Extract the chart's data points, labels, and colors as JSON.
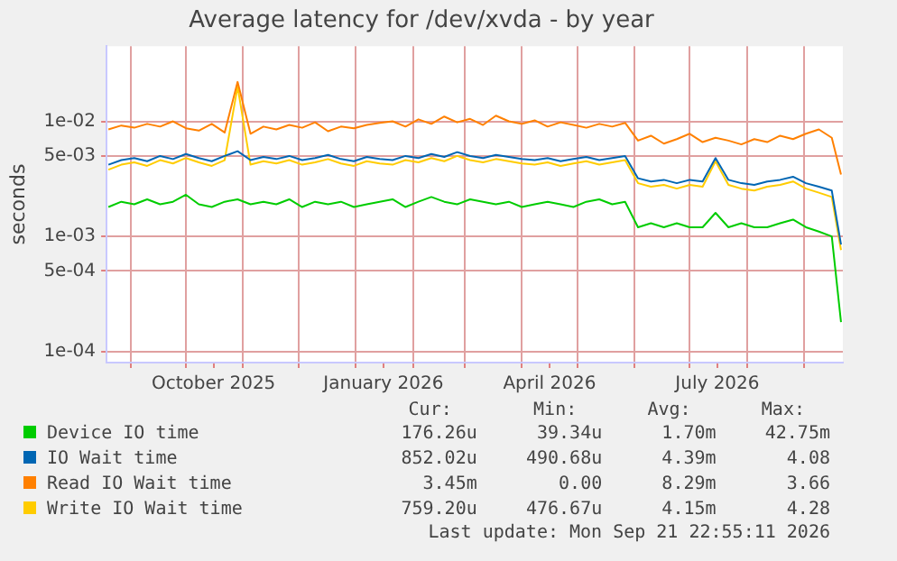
{
  "chart_data": {
    "type": "line",
    "title": "Average latency for /dev/xvda - by year",
    "ylabel": "seconds",
    "x": [
      "2025-08-20",
      "2025-08-27",
      "2025-09-03",
      "2025-09-10",
      "2025-09-17",
      "2025-09-24",
      "2025-10-01",
      "2025-10-08",
      "2025-10-15",
      "2025-10-22",
      "2025-10-29",
      "2025-11-05",
      "2025-11-12",
      "2025-11-19",
      "2025-11-26",
      "2025-12-03",
      "2025-12-10",
      "2025-12-17",
      "2025-12-24",
      "2025-12-31",
      "2026-01-07",
      "2026-01-14",
      "2026-01-21",
      "2026-01-28",
      "2026-02-04",
      "2026-02-11",
      "2026-02-18",
      "2026-02-25",
      "2026-03-04",
      "2026-03-11",
      "2026-03-18",
      "2026-03-25",
      "2026-04-01",
      "2026-04-08",
      "2026-04-15",
      "2026-04-22",
      "2026-04-29",
      "2026-05-06",
      "2026-05-13",
      "2026-05-20",
      "2026-05-27",
      "2026-06-03",
      "2026-06-10",
      "2026-06-17",
      "2026-06-24",
      "2026-07-01",
      "2026-07-08",
      "2026-07-15",
      "2026-07-22",
      "2026-07-29",
      "2026-08-05",
      "2026-08-12",
      "2026-08-19",
      "2026-08-26",
      "2026-09-02",
      "2026-09-09",
      "2026-09-16",
      "2026-09-21"
    ],
    "series": [
      {
        "name": "Device IO time",
        "color": "#00cc00",
        "values": [
          0.0018,
          0.002,
          0.0019,
          0.0021,
          0.0019,
          0.002,
          0.0023,
          0.0019,
          0.0018,
          0.002,
          0.0021,
          0.0019,
          0.002,
          0.0019,
          0.0021,
          0.0018,
          0.002,
          0.0019,
          0.002,
          0.0018,
          0.0019,
          0.002,
          0.0021,
          0.0018,
          0.002,
          0.0022,
          0.002,
          0.0019,
          0.0021,
          0.002,
          0.0019,
          0.002,
          0.0018,
          0.0019,
          0.002,
          0.0019,
          0.0018,
          0.002,
          0.0021,
          0.0019,
          0.002,
          0.0012,
          0.0013,
          0.0012,
          0.0013,
          0.0012,
          0.0012,
          0.0016,
          0.0012,
          0.0013,
          0.0012,
          0.0012,
          0.0013,
          0.0014,
          0.0012,
          0.0011,
          0.001,
          0.00018
        ]
      },
      {
        "name": "IO Wait time",
        "color": "#0066b3",
        "values": [
          0.0042,
          0.0046,
          0.0048,
          0.0045,
          0.005,
          0.0047,
          0.0052,
          0.0048,
          0.0045,
          0.005,
          0.0055,
          0.0046,
          0.0049,
          0.0047,
          0.005,
          0.0046,
          0.0048,
          0.0051,
          0.0047,
          0.0045,
          0.0049,
          0.0047,
          0.0046,
          0.005,
          0.0048,
          0.0052,
          0.0049,
          0.0054,
          0.005,
          0.0048,
          0.0051,
          0.0049,
          0.0047,
          0.0046,
          0.0048,
          0.0045,
          0.0047,
          0.0049,
          0.0046,
          0.0048,
          0.005,
          0.0032,
          0.003,
          0.0031,
          0.0029,
          0.0031,
          0.003,
          0.0048,
          0.0031,
          0.0029,
          0.0028,
          0.003,
          0.0031,
          0.0033,
          0.0029,
          0.0027,
          0.0025,
          0.00085
        ]
      },
      {
        "name": "Read IO Wait time",
        "color": "#ff8000",
        "values": [
          0.0085,
          0.0092,
          0.0088,
          0.0095,
          0.009,
          0.01,
          0.0087,
          0.0083,
          0.0095,
          0.008,
          0.022,
          0.0078,
          0.009,
          0.0085,
          0.0093,
          0.0088,
          0.0098,
          0.0082,
          0.009,
          0.0087,
          0.0093,
          0.0097,
          0.01,
          0.009,
          0.0104,
          0.0095,
          0.011,
          0.0098,
          0.0105,
          0.0093,
          0.0112,
          0.01,
          0.0095,
          0.0102,
          0.009,
          0.0098,
          0.0093,
          0.0088,
          0.0095,
          0.009,
          0.0097,
          0.0068,
          0.0075,
          0.0064,
          0.007,
          0.0078,
          0.0066,
          0.0072,
          0.0068,
          0.0063,
          0.007,
          0.0066,
          0.0075,
          0.007,
          0.0078,
          0.0085,
          0.0072,
          0.00345
        ]
      },
      {
        "name": "Write IO Wait time",
        "color": "#ffcc00",
        "values": [
          0.0038,
          0.0042,
          0.0044,
          0.0041,
          0.0046,
          0.0043,
          0.0048,
          0.0044,
          0.0041,
          0.0046,
          0.02,
          0.0042,
          0.0045,
          0.0043,
          0.0046,
          0.0042,
          0.0044,
          0.0047,
          0.0043,
          0.0041,
          0.0045,
          0.0043,
          0.0042,
          0.0046,
          0.0044,
          0.0048,
          0.0045,
          0.005,
          0.0046,
          0.0044,
          0.0047,
          0.0045,
          0.0043,
          0.0042,
          0.0044,
          0.0041,
          0.0043,
          0.0045,
          0.0042,
          0.0044,
          0.0046,
          0.0029,
          0.0027,
          0.0028,
          0.0026,
          0.0028,
          0.0027,
          0.0045,
          0.0028,
          0.0026,
          0.0025,
          0.0027,
          0.0028,
          0.003,
          0.0026,
          0.0024,
          0.0022,
          0.00076
        ]
      }
    ],
    "xlim": [
      "2025-08-19",
      "2026-09-22"
    ],
    "xticks": [
      {
        "value": "2025-09-01",
        "label": null
      },
      {
        "value": "2025-10-01",
        "label": null
      },
      {
        "value": "2025-10-16",
        "label": "October 2025"
      },
      {
        "value": "2025-11-01",
        "label": null
      },
      {
        "value": "2025-12-01",
        "label": null
      },
      {
        "value": "2026-01-01",
        "label": null
      },
      {
        "value": "2026-01-16",
        "label": "January 2026"
      },
      {
        "value": "2026-02-01",
        "label": null
      },
      {
        "value": "2026-03-01",
        "label": null
      },
      {
        "value": "2026-04-01",
        "label": null
      },
      {
        "value": "2026-04-16",
        "label": "April 2026"
      },
      {
        "value": "2026-05-01",
        "label": null
      },
      {
        "value": "2026-06-01",
        "label": null
      },
      {
        "value": "2026-07-01",
        "label": null
      },
      {
        "value": "2026-07-16",
        "label": "July 2026"
      },
      {
        "value": "2026-08-01",
        "label": null
      },
      {
        "value": "2026-09-01",
        "label": null
      }
    ],
    "ylim": [
      8e-05,
      0.045
    ],
    "yticks": [
      {
        "value": 0.0001,
        "label": "1e-04"
      },
      {
        "value": 0.0005,
        "label": "5e-04"
      },
      {
        "value": 0.001,
        "label": "1e-03"
      },
      {
        "value": 0.005,
        "label": "5e-03"
      },
      {
        "value": 0.01,
        "label": "1e-02"
      }
    ],
    "log": "y",
    "grid": true,
    "legend": "bottom",
    "annotations": [
      "Cur:",
      "Min:",
      "Avg:",
      "Max:",
      "176.26u",
      "39.34u",
      "1.70m",
      "42.75m",
      "852.02u",
      "490.68u",
      "4.39m",
      "4.08",
      "3.45m",
      "0.00",
      "8.29m",
      "3.66",
      "759.20u",
      "476.67u",
      "4.15m",
      "4.28",
      "Last update: Mon Sep 21 22:55:11 2026"
    ]
  }
}
